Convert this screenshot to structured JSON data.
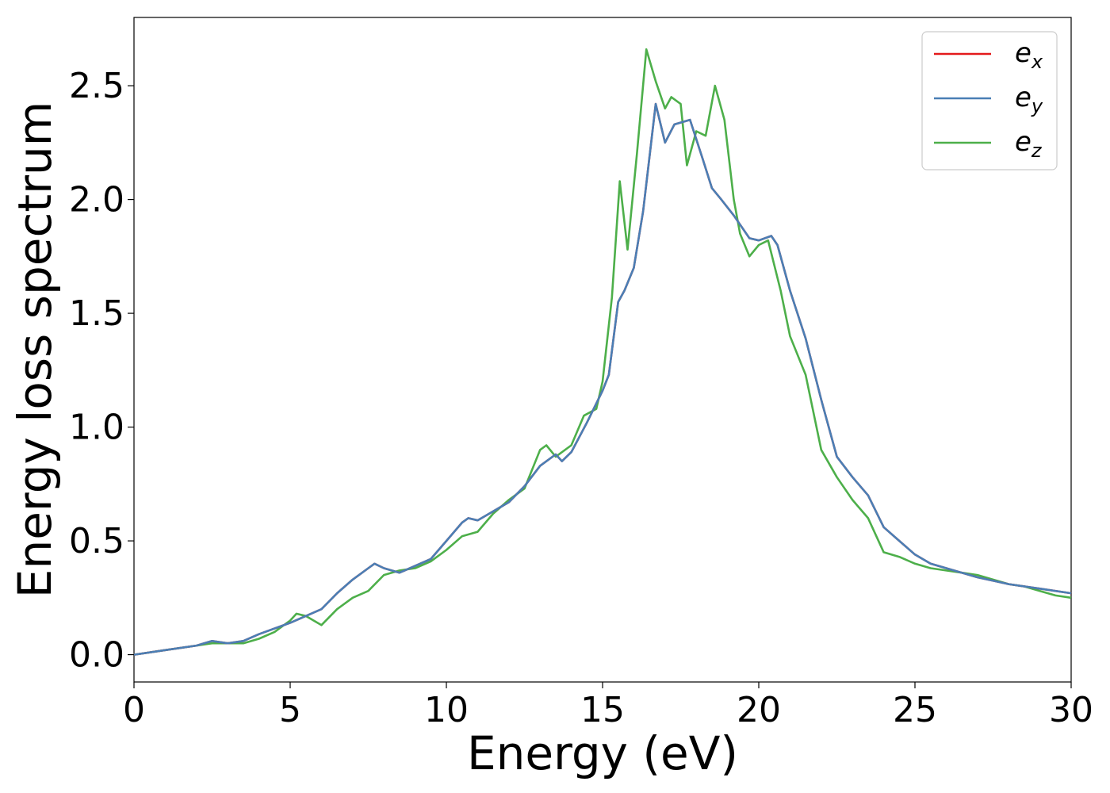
{
  "chart_data": {
    "type": "line",
    "xlabel": "Energy (eV)",
    "ylabel": "Energy loss spectrum",
    "xlim": [
      0,
      30
    ],
    "ylim": [
      -0.12,
      2.8
    ],
    "xticks": [
      "0",
      "5",
      "10",
      "15",
      "20",
      "25",
      "30"
    ],
    "yticks": [
      "0.0",
      "0.5",
      "1.0",
      "1.5",
      "2.0",
      "2.5"
    ],
    "grid": false,
    "legend_position": "top-right",
    "series": [
      {
        "name": "e_x",
        "label_base": "e",
        "label_sub": "x",
        "color": "#e41a1c",
        "x": [
          0,
          1,
          2,
          2.5,
          3,
          3.5,
          4,
          5,
          5.5,
          6,
          6.5,
          7,
          7.5,
          7.7,
          8,
          8.5,
          9,
          9.5,
          10,
          10.5,
          10.7,
          11,
          11.5,
          12,
          12.5,
          13,
          13.5,
          13.7,
          14,
          14.5,
          15,
          15.2,
          15.5,
          15.7,
          16,
          16.3,
          16.7,
          17,
          17.3,
          17.8,
          18.2,
          18.5,
          18.8,
          19.2,
          19.7,
          20,
          20.4,
          20.6,
          21,
          21.5,
          22,
          22.5,
          23,
          23.5,
          24,
          24.5,
          25,
          25.5,
          26,
          27,
          28,
          29,
          30
        ],
        "y": [
          0,
          0.02,
          0.04,
          0.06,
          0.05,
          0.06,
          0.09,
          0.14,
          0.17,
          0.2,
          0.27,
          0.33,
          0.38,
          0.4,
          0.38,
          0.36,
          0.39,
          0.42,
          0.5,
          0.58,
          0.6,
          0.59,
          0.63,
          0.67,
          0.74,
          0.83,
          0.88,
          0.85,
          0.89,
          1.02,
          1.16,
          1.23,
          1.55,
          1.6,
          1.7,
          1.95,
          2.42,
          2.25,
          2.33,
          2.35,
          2.18,
          2.05,
          2.0,
          1.93,
          1.83,
          1.82,
          1.84,
          1.8,
          1.6,
          1.39,
          1.12,
          0.87,
          0.78,
          0.7,
          0.56,
          0.5,
          0.44,
          0.4,
          0.38,
          0.34,
          0.31,
          0.29,
          0.27
        ]
      },
      {
        "name": "e_y",
        "label_base": "e",
        "label_sub": "y",
        "color": "#4a7fb5",
        "x": [
          0,
          1,
          2,
          2.5,
          3,
          3.5,
          4,
          5,
          5.5,
          6,
          6.5,
          7,
          7.5,
          7.7,
          8,
          8.5,
          9,
          9.5,
          10,
          10.5,
          10.7,
          11,
          11.5,
          12,
          12.5,
          13,
          13.5,
          13.7,
          14,
          14.5,
          15,
          15.2,
          15.5,
          15.7,
          16,
          16.3,
          16.7,
          17,
          17.3,
          17.8,
          18.2,
          18.5,
          18.8,
          19.2,
          19.7,
          20,
          20.4,
          20.6,
          21,
          21.5,
          22,
          22.5,
          23,
          23.5,
          24,
          24.5,
          25,
          25.5,
          26,
          27,
          28,
          29,
          30
        ],
        "y": [
          0,
          0.02,
          0.04,
          0.06,
          0.05,
          0.06,
          0.09,
          0.14,
          0.17,
          0.2,
          0.27,
          0.33,
          0.38,
          0.4,
          0.38,
          0.36,
          0.39,
          0.42,
          0.5,
          0.58,
          0.6,
          0.59,
          0.63,
          0.67,
          0.74,
          0.83,
          0.88,
          0.85,
          0.89,
          1.02,
          1.16,
          1.23,
          1.55,
          1.6,
          1.7,
          1.95,
          2.42,
          2.25,
          2.33,
          2.35,
          2.18,
          2.05,
          2.0,
          1.93,
          1.83,
          1.82,
          1.84,
          1.8,
          1.6,
          1.39,
          1.12,
          0.87,
          0.78,
          0.7,
          0.56,
          0.5,
          0.44,
          0.4,
          0.38,
          0.34,
          0.31,
          0.29,
          0.27
        ]
      },
      {
        "name": "e_z",
        "label_base": "e",
        "label_sub": "z",
        "color": "#4daf4a",
        "x": [
          0,
          1,
          2,
          2.5,
          3,
          3.5,
          4,
          4.5,
          5,
          5.2,
          5.5,
          6,
          6.5,
          7,
          7.5,
          8,
          8.5,
          9,
          9.5,
          10,
          10.5,
          11,
          11.5,
          12,
          12.5,
          13,
          13.2,
          13.5,
          14,
          14.4,
          14.8,
          15,
          15.3,
          15.55,
          15.8,
          16.1,
          16.4,
          16.7,
          17.0,
          17.2,
          17.5,
          17.7,
          18.0,
          18.3,
          18.6,
          18.9,
          19.2,
          19.4,
          19.7,
          20.0,
          20.3,
          20.7,
          21.0,
          21.5,
          22.0,
          22.5,
          23.0,
          23.5,
          24.0,
          24.5,
          25.0,
          25.5,
          26.0,
          26.5,
          27.0,
          27.5,
          28.0,
          28.5,
          29.0,
          29.5,
          30.0
        ],
        "y": [
          0,
          0.02,
          0.04,
          0.05,
          0.05,
          0.05,
          0.07,
          0.1,
          0.15,
          0.18,
          0.17,
          0.13,
          0.2,
          0.25,
          0.28,
          0.35,
          0.37,
          0.38,
          0.41,
          0.46,
          0.52,
          0.54,
          0.62,
          0.68,
          0.73,
          0.9,
          0.92,
          0.87,
          0.92,
          1.05,
          1.08,
          1.2,
          1.57,
          2.08,
          1.78,
          2.2,
          2.66,
          2.52,
          2.4,
          2.45,
          2.42,
          2.15,
          2.3,
          2.28,
          2.5,
          2.35,
          2.0,
          1.85,
          1.75,
          1.8,
          1.82,
          1.6,
          1.4,
          1.23,
          0.9,
          0.78,
          0.68,
          0.6,
          0.45,
          0.43,
          0.4,
          0.38,
          0.37,
          0.36,
          0.35,
          0.33,
          0.31,
          0.3,
          0.28,
          0.26,
          0.25
        ]
      }
    ]
  }
}
